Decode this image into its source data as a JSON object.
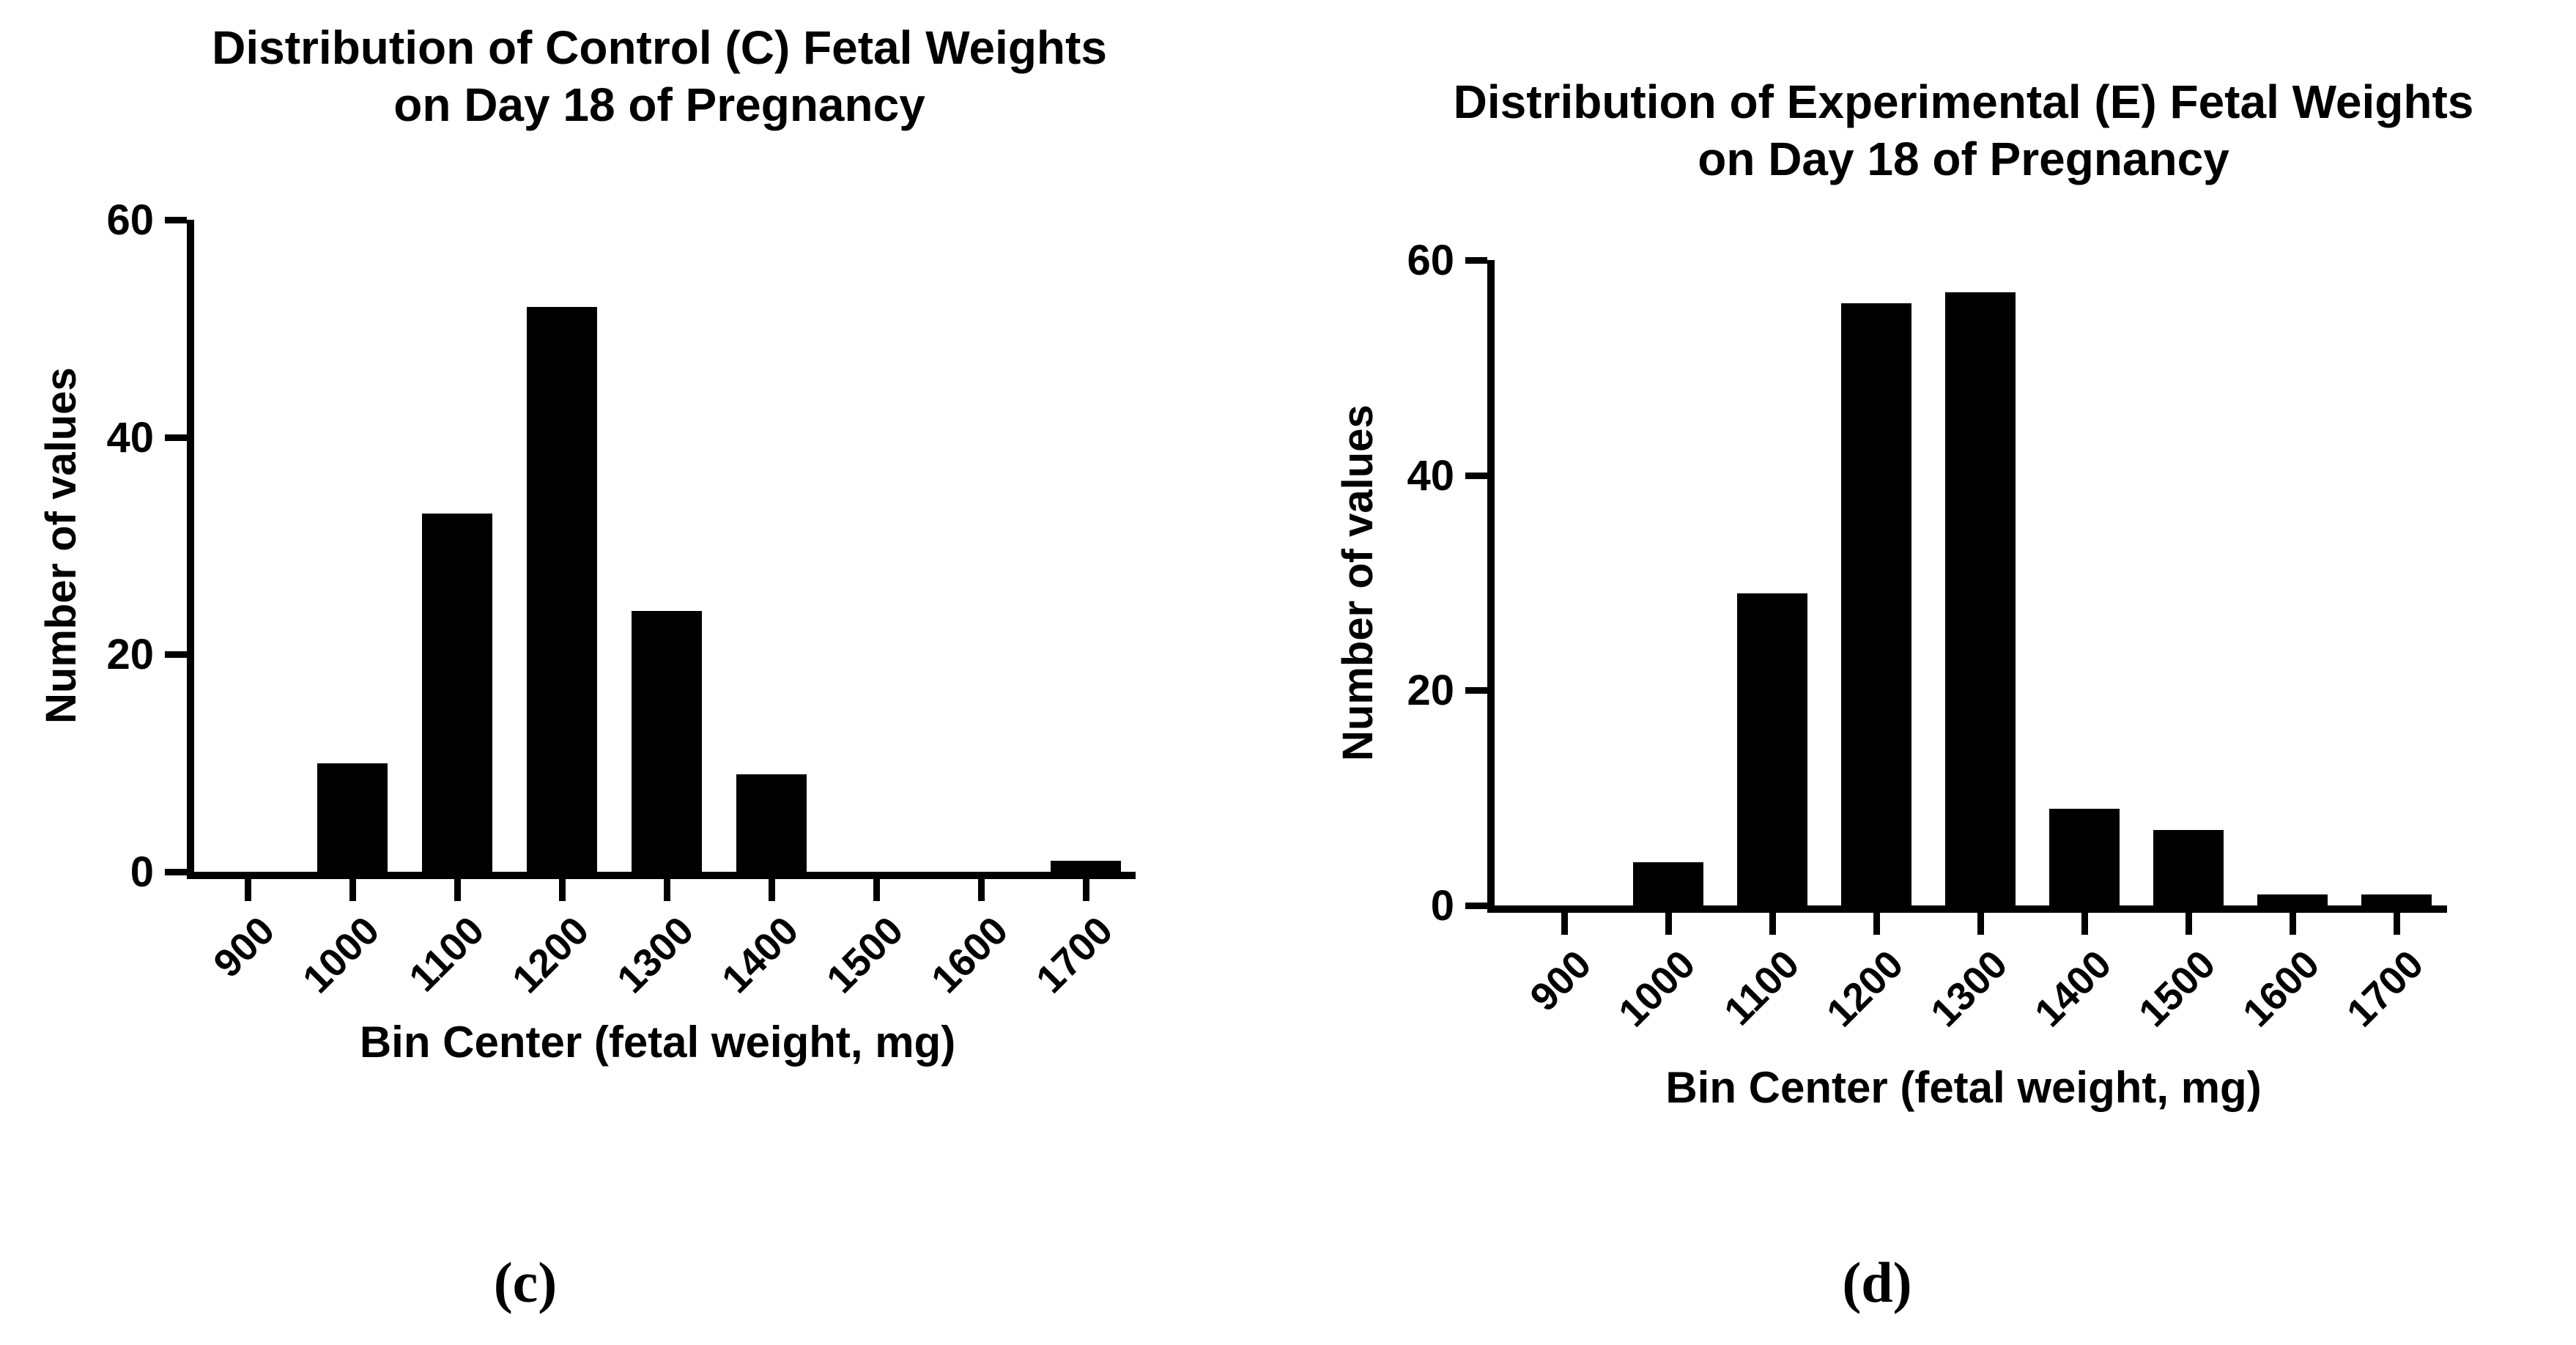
{
  "page": {
    "background": "#ffffff",
    "text_color": "#000000"
  },
  "captions": {
    "left": "(c)",
    "right": "(d)"
  },
  "chart_data": [
    {
      "id": "control-histogram",
      "type": "bar",
      "title": "Distribution of Control (C) Fetal Weights\non Day 18 of Pregnancy",
      "xlabel": "Bin Center (fetal weight, mg)",
      "ylabel": "Number of values",
      "categories": [
        "900",
        "1000",
        "1100",
        "1200",
        "1300",
        "1400",
        "1500",
        "1600",
        "1700"
      ],
      "values": [
        0,
        10,
        33,
        52,
        24,
        9,
        0,
        0,
        1
      ],
      "yticks": [
        0,
        20,
        40,
        60
      ],
      "ylim": [
        0,
        60
      ],
      "bar_color": "#000000",
      "grid": "off",
      "legend": "none",
      "x_tick_label_rotation_deg": -45,
      "panel_caption": "(c)"
    },
    {
      "id": "experimental-histogram",
      "type": "bar",
      "title": "Distribution of Experimental (E) Fetal Weights\non Day 18 of Pregnancy",
      "xlabel": "Bin Center (fetal weight, mg)",
      "ylabel": "Number of values",
      "categories": [
        "900",
        "1000",
        "1100",
        "1200",
        "1300",
        "1400",
        "1500",
        "1600",
        "1700"
      ],
      "values": [
        0,
        4,
        29,
        56,
        57,
        9,
        7,
        1,
        1
      ],
      "yticks": [
        0,
        20,
        40,
        60
      ],
      "ylim": [
        0,
        60
      ],
      "bar_color": "#000000",
      "grid": "off",
      "legend": "none",
      "x_tick_label_rotation_deg": -45,
      "panel_caption": "(d)"
    }
  ]
}
